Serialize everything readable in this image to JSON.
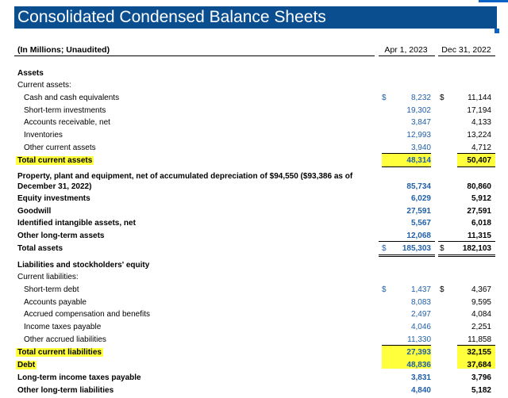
{
  "title": "Consolidated Condensed Balance Sheets",
  "header": {
    "units": "(In Millions; Unaudited)",
    "col1": "Apr 1, 2023",
    "col2": "Dec 31, 2022"
  },
  "rows": [
    {
      "label": "Assets"
    },
    {
      "label": "Current assets:"
    },
    {
      "label": "Cash and cash equivalents",
      "d1": "$",
      "v1": "8,232",
      "d2": "$",
      "v2": "11,144"
    },
    {
      "label": "Short-term investments",
      "v1": "19,302",
      "v2": "17,194"
    },
    {
      "label": "Accounts receivable, net",
      "v1": "3,847",
      "v2": "4,133"
    },
    {
      "label": "Inventories",
      "v1": "12,993",
      "v2": "13,224"
    },
    {
      "label": "Other current assets",
      "v1": "3,940",
      "v2": "4,712"
    },
    {
      "label": "Total current assets",
      "v1": "48,314",
      "v2": "50,407"
    },
    {
      "label": "Property, plant and equipment, net of accumulated depreciation of $94,550 ($93,386 as of",
      "label2": "December 31, 2022)",
      "v1": "85,734",
      "v2": "80,860"
    },
    {
      "label": "Equity investments",
      "v1": "6,029",
      "v2": "5,912"
    },
    {
      "label": "Goodwill",
      "v1": "27,591",
      "v2": "27,591"
    },
    {
      "label": "Identified intangible assets, net",
      "v1": "5,567",
      "v2": "6,018"
    },
    {
      "label": "Other long-term assets",
      "v1": "12,068",
      "v2": "11,315"
    },
    {
      "label": "Total assets",
      "d1": "$",
      "v1": "185,303",
      "d2": "$",
      "v2": "182,103"
    },
    {
      "label": "Liabilities and stockholders' equity"
    },
    {
      "label": "Current liabilities:"
    },
    {
      "label": "Short-term debt",
      "d1": "$",
      "v1": "1,437",
      "d2": "$",
      "v2": "4,367"
    },
    {
      "label": "Accounts payable",
      "v1": "8,083",
      "v2": "9,595"
    },
    {
      "label": "Accrued compensation and benefits",
      "v1": "2,497",
      "v2": "4,084"
    },
    {
      "label": "Income taxes payable",
      "v1": "4,046",
      "v2": "2,251"
    },
    {
      "label": "Other accrued liabilities",
      "v1": "11,330",
      "v2": "11,858"
    },
    {
      "label": "Total current liabilities",
      "v1": "27,393",
      "v2": "32,155"
    },
    {
      "label": "Debt",
      "v1": "48,836",
      "v2": "37,684"
    },
    {
      "label": "Long-term income taxes payable",
      "v1": "3,831",
      "v2": "3,796"
    },
    {
      "label": "Other long-term liabilities",
      "v1": "4,840",
      "v2": "5,182"
    }
  ]
}
